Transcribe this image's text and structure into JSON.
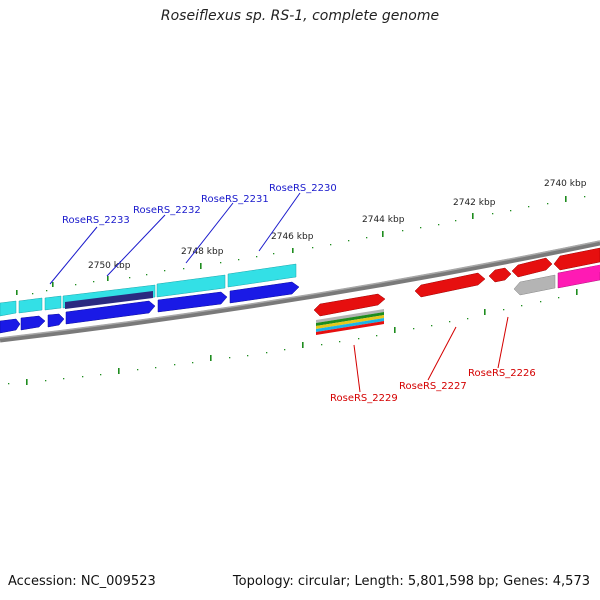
{
  "title": "Roseiflexus sp. RS-1, complete genome",
  "footer": {
    "accession": "Accession: NC_009523",
    "summary": "Topology: circular; Length: 5,801,598 bp; Genes: 4,573"
  },
  "scale_labels": [
    "2750 kbp",
    "2748 kbp",
    "2746 kbp",
    "2744 kbp",
    "2742 kbp",
    "2740 kbp"
  ],
  "gene_labels": {
    "blue": [
      "RoseRS_2233",
      "RoseRS_2232",
      "RoseRS_2231",
      "RoseRS_2230"
    ],
    "red": [
      "RoseRS_2229",
      "RoseRS_2227",
      "RoseRS_2226"
    ]
  },
  "colors": {
    "backbone": "#7a7a7a",
    "ticks": "#1e8c1e",
    "cyan": "#33e0e6",
    "blue": "#1a1ae6",
    "navy": "#2a2a80",
    "red": "#e60f0f",
    "grey": "#b4b4b4",
    "magenta": "#ff1ab4",
    "label_blue": "#1a1acc",
    "label_red": "#d40000"
  }
}
